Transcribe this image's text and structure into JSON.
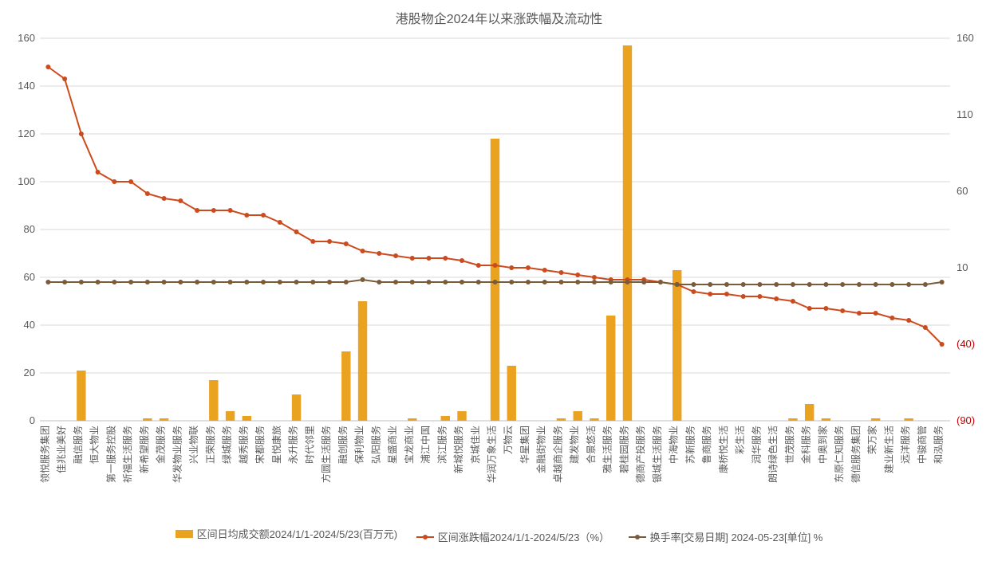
{
  "chart": {
    "title": "港股物企2024年以来涨跌幅及流动性",
    "title_fontsize": 16,
    "title_color": "#595959",
    "background_color": "#ffffff",
    "grid_color": "#d9d9d9",
    "font_family": "Microsoft YaHei, SimSun, Arial, sans-serif",
    "categories": [
      "领悦服务集团",
      "佳兆业美好",
      "融信服务",
      "恒大物业",
      "第一服务控股",
      "祈福生活服务",
      "新希望服务",
      "金茂服务",
      "华发物业服务",
      "兴业物联",
      "正荣服务",
      "绿城服务",
      "越秀服务",
      "宋都服务",
      "星悦康旅",
      "永升服务",
      "时代邻里",
      "方圆生活服务",
      "融创服务",
      "保利物业",
      "弘阳服务",
      "星盛商业",
      "宝龙商业",
      "浦江中国",
      "滨江服务",
      "新城悦服务",
      "京城佳业",
      "华润万象生活",
      "万物云",
      "华星集团",
      "金融街物业",
      "卓越商企服务",
      "建发物业",
      "合景悠活",
      "雅生活服务",
      "碧桂园服务",
      "德商产投服务",
      "银城生活服务",
      "中海物业",
      "苏新服务",
      "鲁商服务",
      "康桥悦生活",
      "彩生活",
      "润华服务",
      "朗诗绿色生活",
      "世茂服务",
      "金科服务",
      "中奥到家",
      "东原仁知服务",
      "德信服务集团",
      "荣万家",
      "建业新生活",
      "远洋服务",
      "中骏商管",
      "和泓服务"
    ],
    "bars": {
      "label": "区间日均成交额2024/1/1-2024/5/23(百万元)",
      "color": "#eaa221",
      "values": [
        0,
        0,
        21,
        0,
        0,
        0,
        1,
        1,
        0,
        0,
        17,
        4,
        2,
        0,
        0,
        11,
        0,
        0,
        29,
        50,
        0,
        0,
        1,
        0,
        2,
        4,
        0,
        118,
        23,
        0,
        0,
        1,
        4,
        1,
        44,
        157,
        0,
        0,
        63,
        0,
        0,
        0,
        0,
        0,
        0,
        1,
        7,
        1,
        0,
        0,
        1,
        0,
        1,
        0,
        0
      ]
    },
    "line_change": {
      "label": "区间涨跌幅2024/1/1-2024/5/23（%）",
      "color": "#cc4b1e",
      "values": [
        148,
        143,
        120,
        104,
        100,
        100,
        95,
        93,
        92,
        88,
        88,
        88,
        86,
        86,
        83,
        79,
        75,
        75,
        74,
        71,
        70,
        69,
        68,
        68,
        68,
        67,
        65,
        65,
        64,
        64,
        63,
        62,
        61,
        60,
        59,
        59,
        59,
        58,
        57,
        54,
        53,
        53,
        52,
        52,
        51,
        50,
        47,
        47,
        46,
        45,
        45,
        43,
        42,
        39,
        32
      ]
    },
    "line_turnover": {
      "label": "换手率[交易日期]  2024-05-23[单位]  %",
      "color": "#7a5b3a",
      "values": [
        58,
        58,
        58,
        58,
        58,
        58,
        58,
        58,
        58,
        58,
        58,
        58,
        58,
        58,
        58,
        58,
        58,
        58,
        58,
        59,
        58,
        58,
        58,
        58,
        58,
        58,
        58,
        58,
        58,
        58,
        58,
        58,
        58,
        58,
        58,
        58,
        58,
        58,
        57,
        57,
        57,
        57,
        57,
        57,
        57,
        57,
        57,
        57,
        57,
        57,
        57,
        57,
        57,
        57,
        58
      ]
    },
    "y_left": {
      "min": 0,
      "max": 160,
      "ticks": [
        0,
        20,
        40,
        60,
        80,
        100,
        120,
        140,
        160
      ],
      "tick_color": "#595959",
      "tick_fontsize": 13
    },
    "y_right": {
      "ticks": [
        {
          "v": 160,
          "label": "160",
          "color": "#595959"
        },
        {
          "v": 110,
          "label": "110",
          "color": "#595959"
        },
        {
          "v": 60,
          "label": "60",
          "color": "#595959"
        },
        {
          "v": 10,
          "label": "10",
          "color": "#595959"
        },
        {
          "v": -40,
          "label": "(40)",
          "color": "#c00000"
        },
        {
          "v": -90,
          "label": "(90)",
          "color": "#c00000"
        }
      ],
      "tick_fontsize": 13
    },
    "axis_color": "#bfbfbf",
    "xlabel_fontsize": 12,
    "xlabel_color": "#595959",
    "marker_radius": 3,
    "line_width": 2,
    "bar_width_ratio": 0.55
  }
}
